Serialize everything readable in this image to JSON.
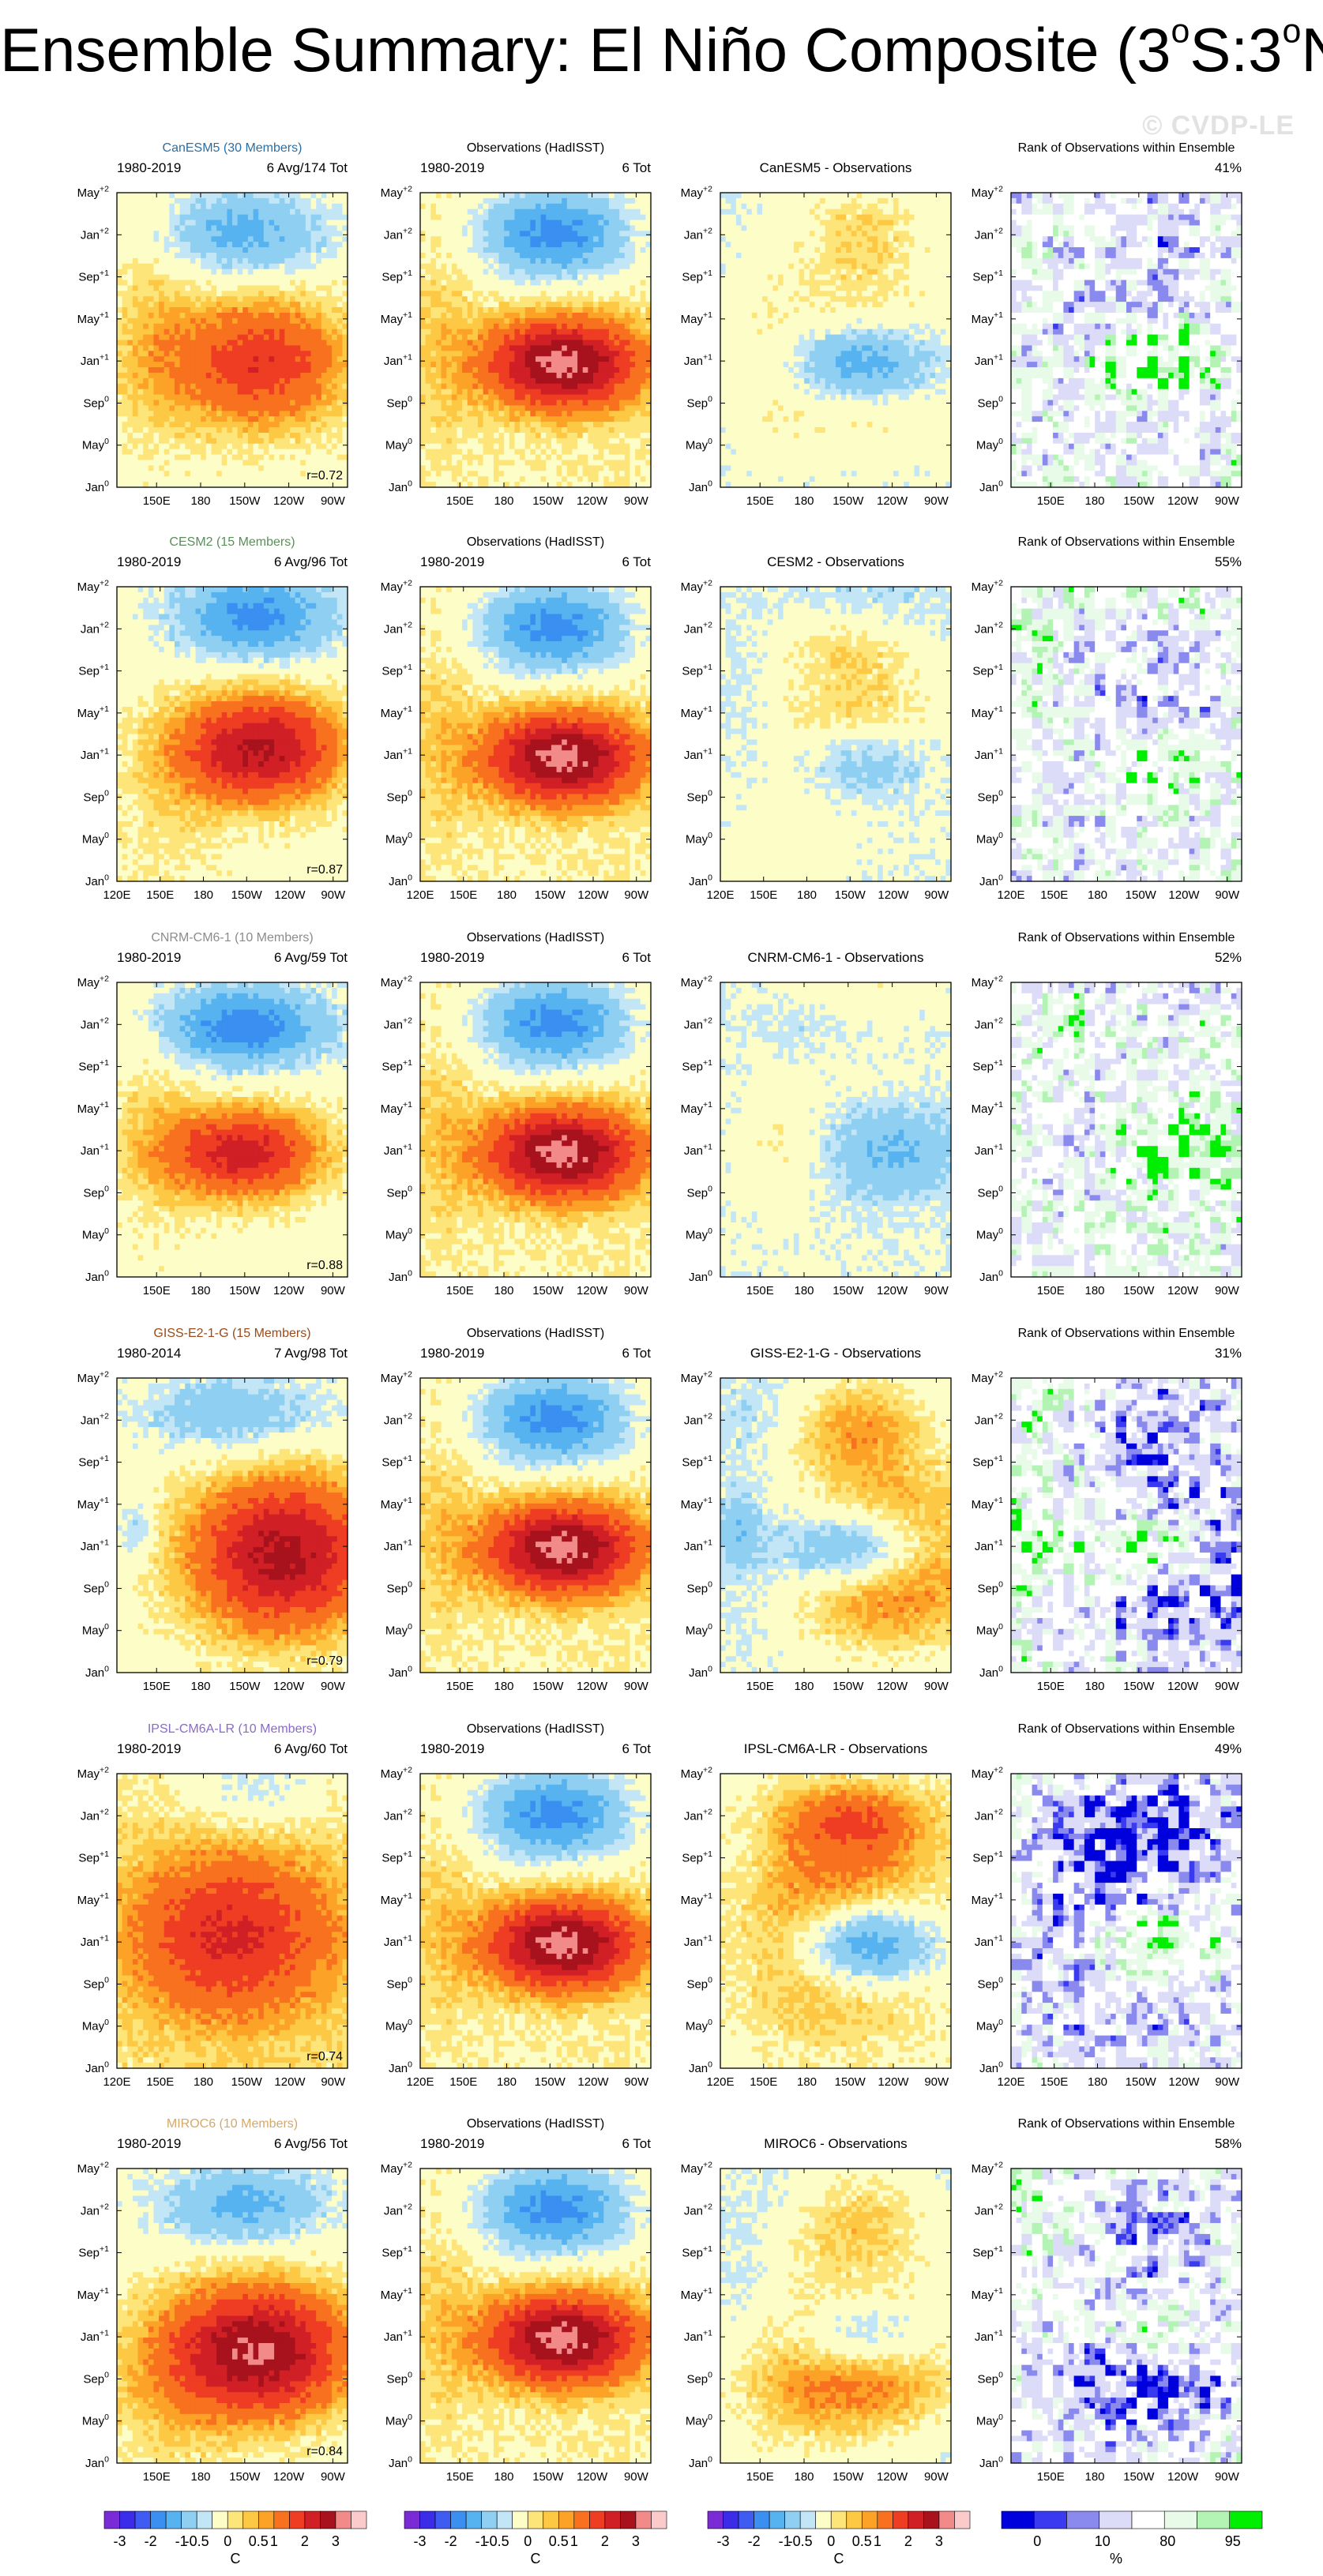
{
  "title": {
    "prefix": "Ensemble Summary: El Niño Composite (3",
    "sup1": "o",
    "mid": "S:3",
    "sup2": "o",
    "suffix": "N)"
  },
  "watermark": "© CVDP-LE",
  "colors": {
    "sst": [
      "#7a2bd6",
      "#3a2ce8",
      "#3f5cf2",
      "#3a8ff0",
      "#56b3f0",
      "#8fd0f2",
      "#c3e6f6",
      "#fdfdc8",
      "#fde57a",
      "#fdc843",
      "#fca227",
      "#f8711f",
      "#ee3d22",
      "#d11f26",
      "#a7121c",
      "#f28a8a",
      "#fbcaca"
    ],
    "rank": [
      "#0000dd",
      "#3a3af0",
      "#8a8aee",
      "#dcdcf8",
      "#ffffff",
      "#e8fae8",
      "#b3f3b3",
      "#00ee00"
    ]
  },
  "chart_data": {
    "type": "heatmap",
    "columns": [
      {
        "header": "",
        "kind": "model"
      },
      {
        "header": "Observations (HadISST)",
        "kind": "obs"
      },
      {
        "header": "",
        "kind": "diff"
      },
      {
        "header": "Rank of Observations within Ensemble",
        "kind": "rank"
      }
    ],
    "y_ticks": [
      {
        "base": "Jan",
        "sup": "0"
      },
      {
        "base": "May",
        "sup": "0"
      },
      {
        "base": "Sep",
        "sup": "0"
      },
      {
        "base": "Jan",
        "sup": "+1"
      },
      {
        "base": "May",
        "sup": "+1"
      },
      {
        "base": "Sep",
        "sup": "+1"
      },
      {
        "base": "Jan",
        "sup": "+2"
      },
      {
        "base": "May",
        "sup": "+2"
      }
    ],
    "x_ticks_short": [
      "150E",
      "180",
      "150W",
      "120W",
      "90W"
    ],
    "x_ticks_long": [
      "120E",
      "150E",
      "180",
      "150W",
      "120W",
      "90W"
    ],
    "x_lon_short": [
      150,
      180,
      210,
      240,
      270
    ],
    "x_lon_long": [
      120,
      150,
      180,
      210,
      240,
      270
    ],
    "sst_colorbar": {
      "labels": [
        "-3",
        "-2",
        "-1",
        "-0.5",
        "0",
        "0.5",
        "1",
        "2",
        "3"
      ],
      "unit": "C"
    },
    "rank_colorbar": {
      "labels": [
        "0",
        "10",
        "80",
        "95"
      ],
      "unit": "%"
    },
    "rows": [
      {
        "model": "CanESM5 (30 Members)",
        "model_color": "#2c6fa3",
        "period": "1980-2019",
        "count": "6 Avg/174 Tot",
        "obs_period": "1980-2019",
        "obs_count": "6 Tot",
        "diff_title": "CanESM5 - Observations",
        "r": "r=0.72",
        "rank_pct": "41%",
        "long_axis": false,
        "lon_start": 123
      },
      {
        "model": "CESM2 (15 Members)",
        "model_color": "#5a8f5a",
        "period": "1980-2019",
        "count": "6 Avg/96 Tot",
        "obs_period": "1980-2019",
        "obs_count": "6 Tot",
        "diff_title": "CESM2 - Observations",
        "r": "r=0.87",
        "rank_pct": "55%",
        "long_axis": true,
        "lon_start": 120
      },
      {
        "model": "CNRM-CM6-1 (10 Members)",
        "model_color": "#8c8c8c",
        "period": "1980-2019",
        "count": "6 Avg/59 Tot",
        "obs_period": "1980-2019",
        "obs_count": "6 Tot",
        "diff_title": "CNRM-CM6-1 - Observations",
        "r": "r=0.88",
        "rank_pct": "52%",
        "long_axis": false,
        "lon_start": 123
      },
      {
        "model": "GISS-E2-1-G (15 Members)",
        "model_color": "#9a4a1a",
        "period": "1980-2014",
        "count": "7 Avg/98 Tot",
        "obs_period": "1980-2019",
        "obs_count": "6 Tot",
        "diff_title": "GISS-E2-1-G - Observations",
        "r": "r=0.79",
        "rank_pct": "31%",
        "long_axis": false,
        "lon_start": 123
      },
      {
        "model": "IPSL-CM6A-LR (10 Members)",
        "model_color": "#8a6ac8",
        "period": "1980-2019",
        "count": "6 Avg/60 Tot",
        "obs_period": "1980-2019",
        "obs_count": "6 Tot",
        "diff_title": "IPSL-CM6A-LR - Observations",
        "r": "r=0.74",
        "rank_pct": "49%",
        "long_axis": true,
        "lon_start": 120
      },
      {
        "model": "MIROC6 (10 Members)",
        "model_color": "#d4a86a",
        "period": "1980-2019",
        "count": "6 Avg/56 Tot",
        "obs_period": "1980-2019",
        "obs_count": "6 Tot",
        "diff_title": "MIROC6 - Observations",
        "r": "r=0.84",
        "rank_pct": "58%",
        "long_axis": false,
        "lon_start": 123
      }
    ]
  }
}
